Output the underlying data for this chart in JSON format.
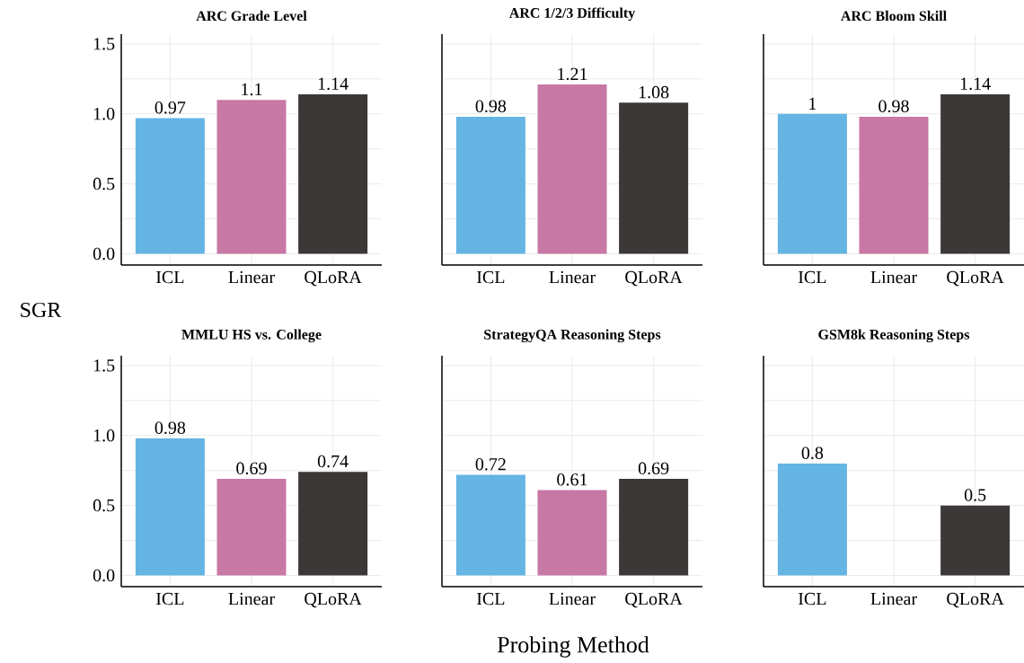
{
  "chart_data": [
    {
      "type": "bar",
      "title": "ARC Grade Level",
      "ylabel": "SGR",
      "categories": [
        "ICL",
        "Linear",
        "QLoRA"
      ],
      "values": [
        0.97,
        1.1,
        1.14
      ],
      "colors": [
        "#64b5e4",
        "#c878a5",
        "#3d3838"
      ],
      "ylim": [
        -0.08,
        1.57
      ],
      "yticks": [
        {
          "value": 0,
          "label": "0.0"
        },
        {
          "value": 0.25,
          "label": null
        },
        {
          "value": 0.5,
          "label": "0.5"
        },
        {
          "value": 0.75,
          "label": null
        },
        {
          "value": 1,
          "label": "1.0"
        },
        {
          "value": 1.25,
          "label": null
        },
        {
          "value": 1.5,
          "label": "1.5"
        }
      ],
      "grid": true,
      "data_labels": true
    },
    {
      "type": "bar",
      "title": "ARC 1/2/3 Difficulty",
      "categories": [
        "ICL",
        "Linear",
        "QLoRA"
      ],
      "values": [
        0.98,
        1.21,
        1.08
      ],
      "colors": [
        "#64b5e4",
        "#c878a5",
        "#3d3838"
      ],
      "ylim": [
        -0.08,
        1.57
      ],
      "yticks": [
        0,
        0.25,
        0.5,
        0.75,
        1,
        1.25,
        1.5
      ],
      "grid": true,
      "data_labels": true,
      "tick_labels": "x"
    },
    {
      "type": "bar",
      "title": "ARC Bloom Skill",
      "categories": [
        "ICL",
        "Linear",
        "QLoRA"
      ],
      "values": [
        1,
        0.98,
        1.14
      ],
      "colors": [
        "#64b5e4",
        "#c878a5",
        "#3d3838"
      ],
      "ylim": [
        -0.08,
        1.57
      ],
      "yticks": [
        0,
        0.25,
        0.5,
        0.75,
        1,
        1.25,
        1.5
      ],
      "grid": true,
      "data_labels": true,
      "tick_labels": "x"
    },
    {
      "type": "bar",
      "title": "MMLU HS vs. College",
      "categories": [
        "ICL",
        "Linear",
        "QLoRA"
      ],
      "values": [
        0.98,
        0.69,
        0.74
      ],
      "colors": [
        "#64b5e4",
        "#c878a5",
        "#3d3838"
      ],
      "ylim": [
        -0.08,
        1.57
      ],
      "yticks": [
        {
          "value": 0,
          "label": "0.0"
        },
        {
          "value": 0.25,
          "label": null
        },
        {
          "value": 0.5,
          "label": "0.5"
        },
        {
          "value": 0.75,
          "label": null
        },
        {
          "value": 1,
          "label": "1.0"
        },
        {
          "value": 1.25,
          "label": null
        },
        {
          "value": 1.5,
          "label": "1.5"
        }
      ],
      "grid": true,
      "data_labels": true
    },
    {
      "type": "bar",
      "title": "StrategyQA Reasoning Steps",
      "xlabel": "Probing Method",
      "categories": [
        "ICL",
        "Linear",
        "QLoRA"
      ],
      "values": [
        0.72,
        0.61,
        0.69
      ],
      "colors": [
        "#64b5e4",
        "#c878a5",
        "#3d3838"
      ],
      "ylim": [
        -0.08,
        1.57
      ],
      "yticks": [
        0,
        0.25,
        0.5,
        0.75,
        1,
        1.25,
        1.5
      ],
      "grid": true,
      "data_labels": true,
      "tick_labels": "x"
    },
    {
      "type": "bar",
      "title": "GSM8k Reasoning Steps",
      "categories": [
        "ICL",
        "Linear",
        "QLoRA"
      ],
      "values": [
        0.8,
        null,
        0.5
      ],
      "colors": [
        "#64b5e4",
        "#c878a5",
        "#3d3838"
      ],
      "ylim": [
        -0.08,
        1.57
      ],
      "yticks": [
        0,
        0.25,
        0.5,
        0.75,
        1,
        1.25,
        1.5
      ],
      "grid": true,
      "data_labels": true,
      "tick_labels": "x"
    }
  ]
}
